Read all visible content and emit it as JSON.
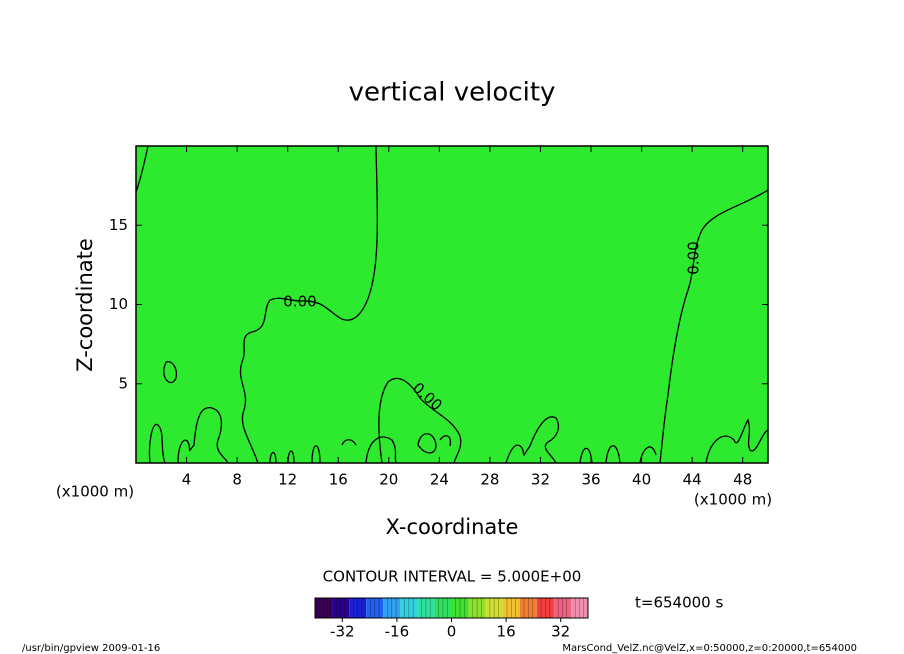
{
  "chart_data": {
    "type": "contour",
    "title": "vertical velocity",
    "x_label": "X-coordinate",
    "y_label": "Z-coordinate",
    "x_units": "(x1000 m)",
    "y_units": "(x1000 m)",
    "xlim": [
      0,
      50
    ],
    "xticks": [
      4,
      8,
      12,
      16,
      20,
      24,
      28,
      32,
      36,
      40,
      44,
      48
    ],
    "ylim": [
      0,
      20
    ],
    "yticks": [
      5,
      10,
      15
    ],
    "field_color": "#2eea2e",
    "contour_levels": [
      {
        "value": 0,
        "label": "0.00"
      }
    ],
    "contour_interval_text": "CONTOUR INTERVAL = 5.000E+00",
    "time_text": "t=654000 s",
    "colorbar": {
      "lim": [
        -40,
        40
      ],
      "ticks": [
        -32,
        -16,
        0,
        16,
        32
      ],
      "colors": [
        "#3a0050",
        "#2a0090",
        "#1a20d0",
        "#2060f0",
        "#30a0f0",
        "#30d0e0",
        "#30e0a0",
        "#30e060",
        "#40e030",
        "#90e030",
        "#d0e030",
        "#f0c030",
        "#f08030",
        "#f04040",
        "#f06080",
        "#f090b0"
      ]
    },
    "footer_left": "/usr/bin/gpview   2009-01-16",
    "footer_right": "MarsCond_VelZ.nc@VelZ,x=0:50000,z=0:20000,t=654000"
  }
}
